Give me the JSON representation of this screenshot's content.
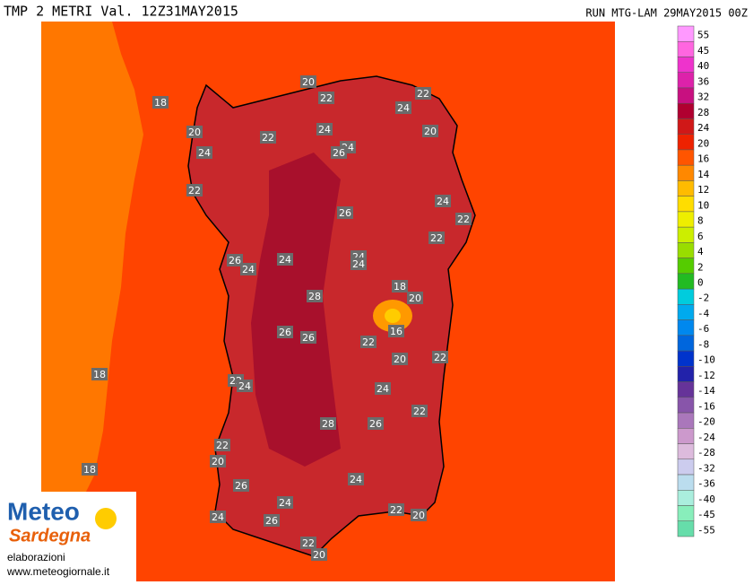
{
  "header": {
    "title": "TMP 2 METRI Val. 12Z31MAY2015",
    "run": "RUN MTG-LAM 29MAY2015 00Z"
  },
  "legend": {
    "values": [
      55,
      45,
      40,
      36,
      32,
      28,
      24,
      20,
      16,
      14,
      12,
      10,
      8,
      6,
      4,
      2,
      0,
      -2,
      -4,
      -6,
      -8,
      -10,
      -12,
      -14,
      -16,
      -20,
      -24,
      -28,
      -32,
      -36,
      -40,
      -45,
      -55
    ],
    "colors": [
      "#ff99ff",
      "#ff66e0",
      "#ee33cc",
      "#dd22aa",
      "#c81080",
      "#b00030",
      "#d01818",
      "#ee2200",
      "#ff5500",
      "#ff8800",
      "#ffbb00",
      "#ffdd00",
      "#eeee00",
      "#ccee00",
      "#99dd00",
      "#55cc00",
      "#22bb22",
      "#00ccdd",
      "#00aaee",
      "#0088ee",
      "#0066dd",
      "#0033cc",
      "#2222aa",
      "#663399",
      "#8855aa",
      "#aa77bb",
      "#cc99cc",
      "#ddbbdd",
      "#ccccee",
      "#bbddee",
      "#aaeedd",
      "#88eebb",
      "#66ddaa"
    ]
  },
  "map": {
    "labels": [
      18,
      20,
      22,
      22,
      24,
      20,
      24,
      22,
      24,
      20,
      24,
      26,
      22,
      24,
      22,
      26,
      22,
      26,
      24,
      24,
      24,
      24,
      18,
      20,
      28,
      16,
      22,
      26,
      26,
      18,
      20,
      22,
      22,
      24,
      24,
      22,
      28,
      26,
      22,
      20,
      18,
      24,
      26,
      24,
      22,
      20,
      24,
      26,
      22,
      20
    ]
  },
  "logo": {
    "brand_top": "Meteo",
    "brand_bottom": "Sardegna",
    "line1": "elaborazioni",
    "line2": "www.meteogiornale.it"
  }
}
